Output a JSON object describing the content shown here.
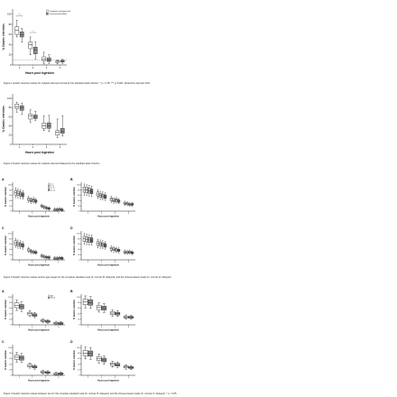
{
  "figure1": {
    "caption": "Figure 1 Gastric retention values for subjects deemed normal by the standard adult criterion. * p < 0.05, *** p<0.001. Dotted line denotes 10%.",
    "ylabel": "% Gastric retention",
    "xlabel": "Hours post ingestion",
    "legend": [
      "Complete standard meal",
      "Cheese-based Meal"
    ],
    "sig": [
      "***",
      "*"
    ]
  },
  "figure2": {
    "caption": "Figure 2 Gastric retention values for subjects deemed delayed by the standard adult criterion",
    "ylabel": "% Gastric retention",
    "xlabel": "Hours post ingestion"
  },
  "figure3": {
    "caption": "Figure 3 Gastric retention values across age ranges for the complete standard meal (A: normal, B: delayed), and the cheese-based meals (C: normal, D: delayed)",
    "panels": [
      "A",
      "B",
      "C",
      "D"
    ],
    "ylabel": "% Gastric retention",
    "xlabel": "Hours post ingestion",
    "legend": [
      "0 - 5",
      "6 - 10",
      "11 - 15",
      "16 - 18"
    ]
  },
  "figure4": {
    "caption": "Figure 4 Gastric retention values between sex for the complete standard meal (A: normal, B: delayed), and the cheese-based meals (C: normal, D: delayed). * p < 0.05.",
    "panels": [
      "A",
      "B",
      "C",
      "D"
    ],
    "ylabel": "% Gastric retention",
    "xlabel": "Hours post ingestion",
    "legend": [
      "Male",
      "Female"
    ]
  },
  "y_ticks": [
    "0",
    "20",
    "40",
    "60",
    "80",
    "100"
  ],
  "x_ticks": [
    "1",
    "2",
    "3",
    "4"
  ],
  "colors": {
    "light": "#ffffff",
    "dark": "#8a8a8a",
    "mid": "#bdbdbd",
    "line": "#222222"
  },
  "chart_data": [
    {
      "type": "box",
      "figure": "Figure 1",
      "x": [
        1,
        2,
        3,
        4
      ],
      "ylim": [
        0,
        110
      ],
      "series": [
        {
          "name": "Complete standard meal",
          "boxes": [
            {
              "min": 55,
              "q1": 60,
              "median": 68,
              "q3": 75,
              "max": 88
            },
            {
              "min": 20,
              "q1": 32,
              "median": 40,
              "q3": 45,
              "max": 55
            },
            {
              "min": 2,
              "q1": 8,
              "median": 12,
              "q3": 16,
              "max": 25
            },
            {
              "min": 2,
              "q1": 5,
              "median": 7,
              "q3": 8,
              "max": 10
            }
          ]
        },
        {
          "name": "Cheese-based Meal",
          "boxes": [
            {
              "min": 45,
              "q1": 55,
              "median": 60,
              "q3": 65,
              "max": 72
            },
            {
              "min": 12,
              "q1": 22,
              "median": 30,
              "q3": 35,
              "max": 45
            },
            {
              "min": 3,
              "q1": 7,
              "median": 10,
              "q3": 14,
              "max": 20
            },
            {
              "min": 3,
              "q1": 6,
              "median": 7,
              "q3": 9,
              "max": 11
            }
          ]
        }
      ]
    },
    {
      "type": "box",
      "figure": "Figure 2",
      "x": [
        1,
        2,
        3,
        4
      ],
      "ylim": [
        0,
        110
      ],
      "series": [
        {
          "name": "Complete standard meal",
          "boxes": [
            {
              "min": 70,
              "q1": 78,
              "median": 82,
              "q3": 88,
              "max": 92
            },
            {
              "min": 48,
              "q1": 55,
              "median": 62,
              "q3": 66,
              "max": 75
            },
            {
              "min": 30,
              "q1": 35,
              "median": 40,
              "q3": 46,
              "max": 62
            },
            {
              "min": 15,
              "q1": 20,
              "median": 26,
              "q3": 30,
              "max": 55
            }
          ]
        },
        {
          "name": "Cheese-based Meal",
          "boxes": [
            {
              "min": 65,
              "q1": 74,
              "median": 79,
              "q3": 84,
              "max": 90
            },
            {
              "min": 52,
              "q1": 56,
              "median": 60,
              "q3": 64,
              "max": 72
            },
            {
              "min": 28,
              "q1": 35,
              "median": 40,
              "q3": 47,
              "max": 63
            },
            {
              "min": 18,
              "q1": 24,
              "median": 28,
              "q3": 35,
              "max": 62
            }
          ]
        }
      ]
    },
    {
      "type": "box",
      "figure": "Figure 3",
      "panels": [
        {
          "id": "A",
          "x": [
            1,
            2,
            3,
            4
          ],
          "ylim": [
            0,
            110
          ],
          "series": [
            {
              "name": "0 - 5",
              "medians": [
                70,
                45,
                20,
                5
              ]
            },
            {
              "name": "6 - 10",
              "medians": [
                68,
                40,
                15,
                6
              ]
            },
            {
              "name": "11 - 15",
              "medians": [
                65,
                42,
                12,
                7
              ]
            },
            {
              "name": "16 - 18",
              "medians": [
                62,
                38,
                10,
                5
              ]
            }
          ]
        },
        {
          "id": "B",
          "x": [
            1,
            2,
            3,
            4
          ],
          "ylim": [
            0,
            110
          ],
          "series": [
            {
              "name": "0 - 5",
              "medians": [
                82,
                65,
                45,
                30
              ]
            },
            {
              "name": "6 - 10",
              "medians": [
                80,
                60,
                40,
                28
              ]
            },
            {
              "name": "11 - 15",
              "medians": [
                78,
                58,
                42,
                25
              ]
            },
            {
              "name": "16 - 18",
              "medians": [
                75,
                55,
                38,
                26
              ]
            }
          ]
        },
        {
          "id": "C",
          "x": [
            1,
            2,
            3,
            4
          ],
          "ylim": [
            0,
            110
          ],
          "series": [
            {
              "name": "0 - 5",
              "medians": [
                65,
                38,
                15,
                6
              ]
            },
            {
              "name": "6 - 10",
              "medians": [
                60,
                32,
                12,
                5
              ]
            },
            {
              "name": "11 - 15",
              "medians": [
                58,
                30,
                10,
                7
              ]
            },
            {
              "name": "16 - 18",
              "medians": [
                55,
                28,
                9,
                6
              ]
            }
          ]
        },
        {
          "id": "D",
          "x": [
            1,
            2,
            3,
            4
          ],
          "ylim": [
            0,
            110
          ],
          "series": [
            {
              "name": "0 - 5",
              "medians": [
                80,
                62,
                42,
                30
              ]
            },
            {
              "name": "6 - 10",
              "medians": [
                78,
                60,
                40,
                28
              ]
            },
            {
              "name": "11 - 15",
              "medians": [
                76,
                58,
                38,
                30
              ]
            },
            {
              "name": "16 - 18",
              "medians": [
                75,
                55,
                36,
                27
              ]
            }
          ]
        }
      ]
    },
    {
      "type": "box",
      "figure": "Figure 4",
      "panels": [
        {
          "id": "A",
          "x": [
            1,
            2,
            3,
            4
          ],
          "ylim": [
            0,
            110
          ],
          "series": [
            {
              "name": "Male",
              "medians": [
                70,
                40,
                15,
                6
              ]
            },
            {
              "name": "Female",
              "medians": [
                65,
                35,
                12,
                5
              ]
            }
          ]
        },
        {
          "id": "B",
          "x": [
            1,
            2,
            3,
            4
          ],
          "ylim": [
            0,
            110
          ],
          "series": [
            {
              "name": "Male",
              "medians": [
                82,
                62,
                42,
                28
              ]
            },
            {
              "name": "Female",
              "medians": [
                80,
                60,
                40,
                27
              ]
            }
          ]
        },
        {
          "id": "C",
          "x": [
            1,
            2,
            3,
            4
          ],
          "ylim": [
            0,
            110
          ],
          "series": [
            {
              "name": "Male",
              "medians": [
                65,
                35,
                12,
                5
              ]
            },
            {
              "name": "Female",
              "medians": [
                62,
                30,
                10,
                6
              ]
            }
          ]
        },
        {
          "id": "D",
          "x": [
            1,
            2,
            3,
            4
          ],
          "ylim": [
            0,
            110
          ],
          "series": [
            {
              "name": "Male",
              "medians": [
                80,
                60,
                40,
                30
              ]
            },
            {
              "name": "Female",
              "medians": [
                78,
                55,
                38,
                28
              ]
            }
          ]
        }
      ]
    }
  ]
}
